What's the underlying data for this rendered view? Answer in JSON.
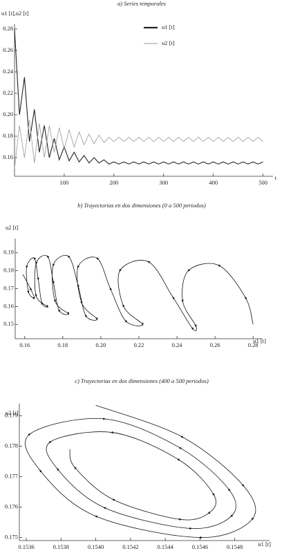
{
  "chart_data": [
    {
      "type": "line",
      "title": "a) Series temporales",
      "ylabel": "u1 [t],u2 [t]",
      "xlabel": "t",
      "x": [
        0,
        10,
        20,
        30,
        40,
        50,
        60,
        70,
        80,
        90,
        100,
        110,
        120,
        130,
        140,
        150,
        160,
        170,
        180,
        190,
        200,
        210,
        220,
        230,
        240,
        250,
        260,
        270,
        280,
        290,
        300,
        310,
        320,
        330,
        340,
        350,
        360,
        370,
        380,
        390,
        400,
        410,
        420,
        430,
        440,
        450,
        460,
        470,
        480,
        490,
        500
      ],
      "series": [
        {
          "name": "u1 [t]",
          "color": "#222222",
          "values": [
            0.28,
            0.2,
            0.235,
            0.175,
            0.205,
            0.165,
            0.19,
            0.16,
            0.178,
            0.158,
            0.17,
            0.157,
            0.165,
            0.156,
            0.162,
            0.155,
            0.16,
            0.155,
            0.158,
            0.154,
            0.156,
            0.154,
            0.156,
            0.154,
            0.156,
            0.154,
            0.156,
            0.154,
            0.156,
            0.154,
            0.156,
            0.154,
            0.156,
            0.154,
            0.156,
            0.154,
            0.156,
            0.154,
            0.156,
            0.154,
            0.156,
            0.154,
            0.156,
            0.154,
            0.156,
            0.154,
            0.156,
            0.154,
            0.156,
            0.154,
            0.156
          ]
        },
        {
          "name": "u2 [t]",
          "color": "#999999",
          "values": [
            0.15,
            0.19,
            0.16,
            0.195,
            0.155,
            0.192,
            0.16,
            0.19,
            0.165,
            0.188,
            0.168,
            0.186,
            0.17,
            0.184,
            0.172,
            0.182,
            0.173,
            0.181,
            0.174,
            0.179,
            0.175,
            0.179,
            0.175,
            0.179,
            0.175,
            0.179,
            0.175,
            0.179,
            0.175,
            0.179,
            0.175,
            0.179,
            0.175,
            0.179,
            0.175,
            0.179,
            0.175,
            0.179,
            0.175,
            0.179,
            0.175,
            0.179,
            0.175,
            0.179,
            0.175,
            0.179,
            0.175,
            0.179,
            0.175,
            0.179,
            0.175
          ]
        }
      ],
      "xlim": [
        0,
        520
      ],
      "xticks": [
        100,
        200,
        300,
        400,
        500
      ],
      "ylim": [
        0.1426,
        0.2845
      ],
      "yticks": [
        0.16,
        0.18,
        {
          "value": 0.2,
          "label": "0.20"
        },
        0.22,
        0.24,
        0.26,
        0.28
      ]
    },
    {
      "type": "line",
      "title": "b) Trayectorias en dos dimensiones (0 a 500 periodos)",
      "ylabel": "u2 [t]",
      "xlabel": "u1 [t]",
      "color": "#111111",
      "x": [
        0.28,
        0.276,
        0.262,
        0.246,
        0.243,
        0.25,
        0.248,
        0.238,
        0.225,
        0.21,
        0.212,
        0.222,
        0.213,
        0.205,
        0.198,
        0.188,
        0.19,
        0.198,
        0.192,
        0.188,
        0.183,
        0.175,
        0.176,
        0.183,
        0.178,
        0.175,
        0.172,
        0.166,
        0.166,
        0.172,
        0.169,
        0.167,
        0.165,
        0.161,
        0.162,
        0.165,
        0.163,
        0.159
      ],
      "values": [
        0.15,
        0.165,
        0.183,
        0.18,
        0.163,
        0.149,
        0.148,
        0.165,
        0.185,
        0.18,
        0.16,
        0.15,
        0.152,
        0.17,
        0.187,
        0.182,
        0.162,
        0.153,
        0.155,
        0.172,
        0.188,
        0.183,
        0.163,
        0.156,
        0.158,
        0.174,
        0.188,
        0.184,
        0.166,
        0.16,
        0.162,
        0.176,
        0.187,
        0.182,
        0.168,
        0.165,
        0.17,
        0.178
      ],
      "xlim": [
        0.155,
        0.285
      ],
      "xticks": [
        0.16,
        0.18,
        {
          "value": 0.2,
          "label": "0.20"
        },
        0.22,
        0.24,
        0.26,
        0.28
      ],
      "ylim": [
        0.142,
        0.198
      ],
      "yticks": [
        0.15,
        0.16,
        0.17,
        0.18,
        0.19
      ]
    },
    {
      "type": "line",
      "title": "c) Trayectorias en dos dimensiones (400 a 500 periodos)",
      "ylabel": "u2 [t]",
      "xlabel": "u1 [t]",
      "color": "#111111",
      "x": [
        0.154,
        0.1545,
        0.15485,
        0.1549,
        0.1546,
        0.154,
        0.15368,
        0.15362,
        0.15405,
        0.15449,
        0.15477,
        0.15478,
        0.15454,
        0.15405,
        0.15378,
        0.15374,
        0.1541,
        0.15448,
        0.15468,
        0.15465,
        0.15448,
        0.1541,
        0.15388,
        0.15385
      ],
      "values": [
        0.17935,
        0.1783,
        0.1767,
        0.1756,
        0.175,
        0.1757,
        0.1772,
        0.1784,
        0.1789,
        0.17793,
        0.17655,
        0.1757,
        0.1753,
        0.17598,
        0.17725,
        0.17815,
        0.17845,
        0.17755,
        0.1764,
        0.1758,
        0.1756,
        0.17625,
        0.1773,
        0.1779
      ],
      "xlim": [
        0.15356,
        0.155
      ],
      "xticks": [
        0.1536,
        0.1538,
        {
          "value": 0.154,
          "label": "0.1540"
        },
        0.1542,
        0.1544,
        0.1546,
        0.1548
      ],
      "ylim": [
        0.1749,
        0.1794
      ],
      "yticks": [
        0.175,
        0.176,
        0.177,
        0.178,
        0.179
      ]
    }
  ]
}
